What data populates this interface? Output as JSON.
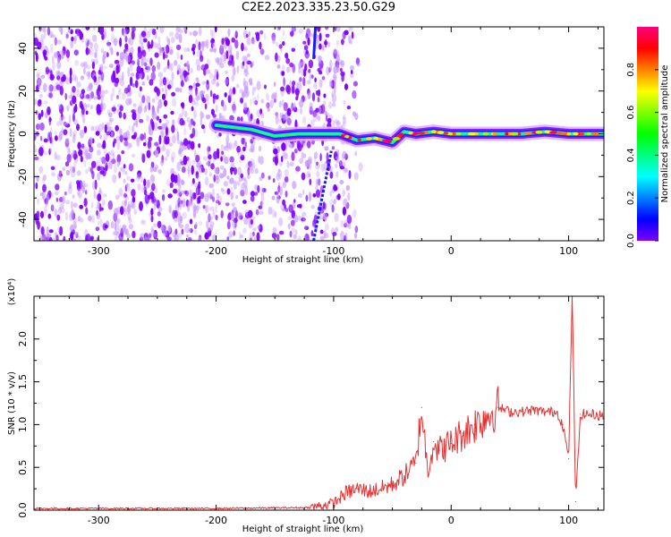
{
  "title": "C2E2.2023.335.23.50.G29",
  "colors": {
    "purple": "#8000ff",
    "blue": "#1a1aff",
    "red_line": "#e63030",
    "axis": "#000000"
  },
  "chart_data": [
    {
      "type": "heatmap",
      "xlabel": "Height of straight line (km)",
      "ylabel": "Frequency (Hz)",
      "xlim": [
        -355,
        130
      ],
      "ylim": [
        -50,
        50
      ],
      "xticks": [
        -300,
        -200,
        -100,
        0,
        100
      ],
      "yticks": [
        -40,
        -20,
        0,
        20,
        40
      ],
      "colorbar": {
        "label": "Normalized spectral amplitude",
        "range": [
          0.0,
          1.0
        ],
        "ticks": [
          "0.0",
          "0.2",
          "0.4",
          "0.6",
          "0.8"
        ],
        "colormap": "rainbow (purple-blue-cyan-green-yellow-red-magenta)"
      },
      "features": {
        "noise_region_x": [
          -355,
          -100
        ],
        "noise_gap_x": [
          -160,
          -152
        ],
        "carrier_line": {
          "x": [
            -200,
            -170,
            -150,
            -130,
            -110,
            -95,
            -80,
            -65,
            -50,
            -40,
            -30,
            -15,
            0,
            20,
            40,
            60,
            80,
            100,
            130
          ],
          "y": [
            4,
            2,
            -1,
            0,
            0,
            0,
            -3,
            -2,
            -4,
            1,
            0,
            1,
            0,
            0,
            0,
            0,
            1,
            0,
            0
          ]
        },
        "diagonal_streak": {
          "x": [
            -117,
            -102
          ],
          "y": [
            -50,
            -8
          ]
        },
        "vertical_streak": {
          "x": [
            -117,
            -117
          ],
          "y": [
            35,
            50
          ]
        }
      }
    },
    {
      "type": "line",
      "xlabel": "Height of straight line (km)",
      "ylabel": "SNR (10 * v/v)",
      "yscale_label": "(x10⁴)",
      "xlim": [
        -355,
        130
      ],
      "ylim": [
        0,
        2.5
      ],
      "xticks": [
        -300,
        -200,
        -100,
        0,
        100
      ],
      "yticks": [
        0.0,
        0.5,
        1.0,
        1.5,
        2.0
      ],
      "series": [
        {
          "color": "#e63030",
          "x": [
            -355,
            -300,
            -200,
            -120,
            -100,
            -90,
            -80,
            -70,
            -60,
            -50,
            -40,
            -30,
            -25,
            -20,
            -15,
            -10,
            0,
            10,
            20,
            30,
            40,
            50,
            60,
            70,
            80,
            90,
            95,
            100,
            103,
            106,
            110,
            120,
            130
          ],
          "y": [
            0.02,
            0.02,
            0.02,
            0.03,
            0.08,
            0.2,
            0.25,
            0.22,
            0.25,
            0.3,
            0.4,
            0.55,
            1.2,
            0.45,
            0.8,
            0.7,
            0.78,
            0.9,
            1.0,
            1.1,
            1.2,
            1.15,
            1.15,
            1.17,
            1.15,
            1.15,
            1.0,
            0.6,
            2.55,
            0.1,
            1.12,
            1.12,
            1.1
          ]
        }
      ]
    }
  ]
}
